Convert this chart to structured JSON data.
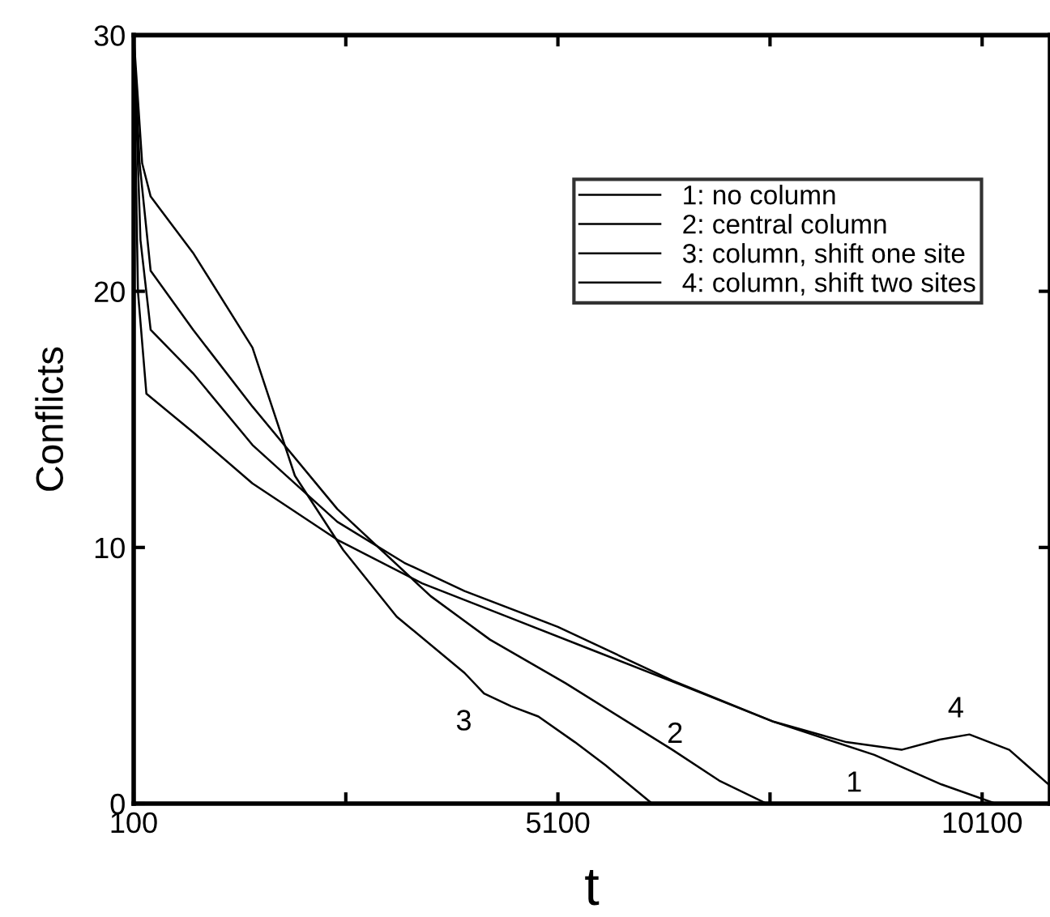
{
  "chart_data": {
    "type": "line",
    "xlabel": "t",
    "ylabel": "Conflicts",
    "xlim": [
      100,
      10900
    ],
    "ylim": [
      0,
      30
    ],
    "xticks": [
      100,
      {
        "value": 2600,
        "label": null
      },
      5100,
      {
        "value": 7600,
        "label": null
      },
      10100
    ],
    "yticks": [
      0,
      10,
      20,
      30
    ],
    "grid": false,
    "legend": "top right",
    "line_style": "solid",
    "marker": "none",
    "series": [
      {
        "name": "1: no column",
        "color": "#000000",
        "x": [
          100,
          180,
          300,
          800,
          1500,
          2500,
          3290,
          4000,
          5100,
          6450,
          7640,
          8830,
          9620,
          10260
        ],
        "values": [
          30,
          22,
          18.5,
          16.8,
          14,
          11,
          9.4,
          8.3,
          6.9,
          4.8,
          3.2,
          1.9,
          0.75,
          0
        ]
      },
      {
        "name": "2: central column",
        "color": "#000000",
        "x": [
          100,
          170,
          300,
          800,
          1500,
          2500,
          3600,
          4300,
          5190,
          6450,
          7000,
          7560
        ],
        "values": [
          30,
          25,
          20.8,
          18.5,
          15.5,
          11.5,
          8.1,
          6.4,
          4.7,
          2.1,
          0.9,
          0
        ]
      },
      {
        "name": "3: column, shift one site",
        "color": "#000000",
        "x": [
          100,
          200,
          300,
          800,
          1500,
          2000,
          2570,
          3200,
          4000,
          4230,
          4550,
          4870,
          5300,
          5660,
          6210
        ],
        "values": [
          30,
          25,
          23.7,
          21.5,
          17.8,
          12.8,
          9.9,
          7.3,
          5.1,
          4.3,
          3.8,
          3.4,
          2.4,
          1.5,
          0
        ]
      },
      {
        "name": "4: column, shift two sites",
        "color": "#000000",
        "x": [
          100,
          150,
          250,
          800,
          1500,
          2500,
          3500,
          4500,
          5500,
          6500,
          7640,
          8500,
          9150,
          9600,
          9950,
          10420,
          10900
        ],
        "values": [
          30,
          20,
          16,
          14.5,
          12.5,
          10.3,
          8.6,
          7.3,
          6.0,
          4.7,
          3.2,
          2.4,
          2.1,
          2.5,
          2.7,
          2.1,
          0.7
        ]
      }
    ],
    "annotations": [
      {
        "text": "3",
        "x": 4230,
        "y": 4.3
      },
      {
        "text": "2",
        "x": 6640,
        "y": 1.7
      },
      {
        "text": "1",
        "x": 8830,
        "y": 1.9
      },
      {
        "text": "4",
        "x": 9950,
        "y": 2.7
      }
    ]
  }
}
